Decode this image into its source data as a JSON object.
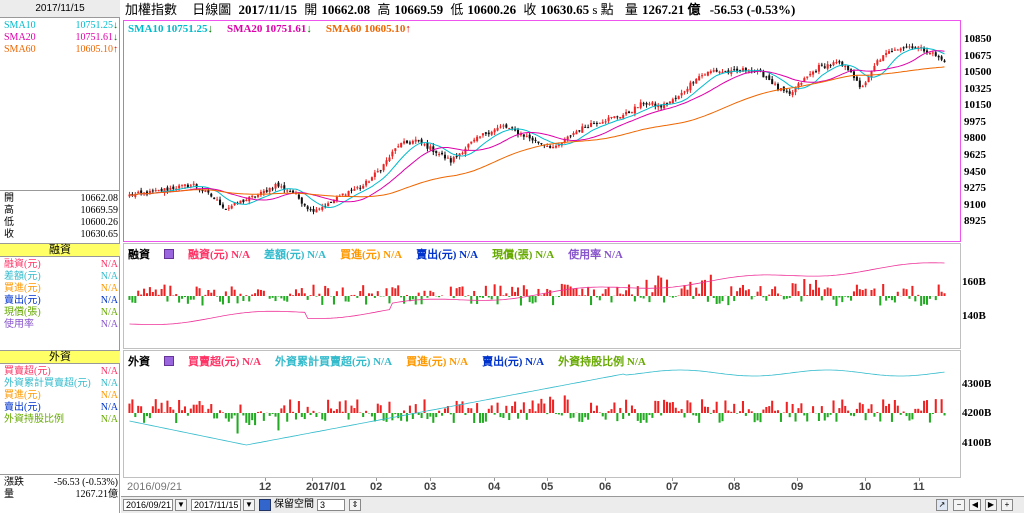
{
  "sidebar": {
    "date": "2017/11/15",
    "sma": [
      {
        "label": "SMA10",
        "value": "10751.25",
        "arrow": "down",
        "color": "#00bbcc"
      },
      {
        "label": "SMA20",
        "value": "10751.61",
        "arrow": "down",
        "color": "#dd00aa"
      },
      {
        "label": "SMA60",
        "value": "10605.10",
        "arrow": "up",
        "color": "#ee6600"
      }
    ],
    "ohlc": [
      {
        "label": "開",
        "value": "10662.08"
      },
      {
        "label": "高",
        "value": "10669.59"
      },
      {
        "label": "低",
        "value": "10600.26"
      },
      {
        "label": "收",
        "value": "10630.65"
      }
    ],
    "margin_title": "融資",
    "margin_items": [
      {
        "label": "融資(元)",
        "value": "N/A",
        "color": "#ff3366"
      },
      {
        "label": "差額(元)",
        "value": "N/A",
        "color": "#33bbcc"
      },
      {
        "label": "買進(元)",
        "value": "N/A",
        "color": "#ff9900"
      },
      {
        "label": "賣出(元)",
        "value": "N/A",
        "color": "#0033cc"
      },
      {
        "label": "現償(張)",
        "value": "N/A",
        "color": "#66aa00"
      },
      {
        "label": "使用率",
        "value": "N/A",
        "color": "#8855cc"
      }
    ],
    "foreign_title": "外資",
    "foreign_items": [
      {
        "label": "買賣超(元)",
        "value": "N/A",
        "color": "#ff3366"
      },
      {
        "label": "外資累計買賣超(元)",
        "value": "N/A",
        "color": "#33bbcc"
      },
      {
        "label": "買進(元)",
        "value": "N/A",
        "color": "#ff9900"
      },
      {
        "label": "賣出(元)",
        "value": "N/A",
        "color": "#0033cc"
      },
      {
        "label": "外資持股比例",
        "value": "N/A",
        "color": "#66aa00"
      }
    ],
    "change_label": "漲跌",
    "change_value": "-56.53 (-0.53%)",
    "volume_label": "量",
    "volume_value": "1267.21億"
  },
  "header": {
    "name": "加權指數",
    "type": "日線圖",
    "date": "2017/11/15",
    "open_label": "開",
    "open": "10662.08",
    "high_label": "高",
    "high": "10669.59",
    "low_label": "低",
    "low": "10600.26",
    "close_label": "收",
    "close": "10630.65",
    "unit": "s 點",
    "volume_label": "量",
    "volume": "1267.21 億",
    "change": "-56.53 (-0.53%)"
  },
  "price_legend": [
    {
      "label": "SMA10 10751.25",
      "arrow": "↓",
      "color": "#00bbcc"
    },
    {
      "label": "SMA20 10751.61",
      "arrow": "↓",
      "color": "#dd00aa"
    },
    {
      "label": "SMA60 10605.10",
      "arrow": "↑",
      "color": "#ee6600"
    }
  ],
  "margin_legend": {
    "title": "融資",
    "items": [
      {
        "label": "融資(元) N/A",
        "color": "#ff3366"
      },
      {
        "label": "差額(元) N/A",
        "color": "#33bbcc"
      },
      {
        "label": "買進(元) N/A",
        "color": "#ff9900"
      },
      {
        "label": "賣出(元) N/A",
        "color": "#0033cc"
      },
      {
        "label": "現償(張) N/A",
        "color": "#66aa00"
      },
      {
        "label": "使用率 N/A",
        "color": "#8855cc"
      }
    ]
  },
  "foreign_legend": {
    "title": "外資",
    "items": [
      {
        "label": "買賣超(元) N/A",
        "color": "#ff3366"
      },
      {
        "label": "外資累計買賣超(元) N/A",
        "color": "#33bbcc"
      },
      {
        "label": "買進(元) N/A",
        "color": "#ff9900"
      },
      {
        "label": "賣出(元) N/A",
        "color": "#0033cc"
      },
      {
        "label": "外資持股比例 N/A",
        "color": "#66aa00"
      }
    ]
  },
  "bottom": {
    "start_date": "2016/09/21",
    "end_date": "2017/11/15",
    "keep_label": "保留空間",
    "keep_value": "3"
  },
  "chart_data": [
    {
      "type": "candlestick",
      "title": "加權指數 日線圖",
      "y_ticks": [
        10850,
        10675,
        10500,
        10325,
        10150,
        9975,
        9800,
        9625,
        9450,
        9275,
        9100,
        8925
      ],
      "ylim": [
        8820,
        10960
      ],
      "x_ticks": [
        "2016/09/21",
        "12",
        "2017/01",
        "02",
        "03",
        "04",
        "05",
        "06",
        "07",
        "08",
        "09",
        "10",
        "11"
      ],
      "candle_count": 280,
      "close_anchors": [
        [
          0,
          9220
        ],
        [
          8,
          9250
        ],
        [
          15,
          9300
        ],
        [
          22,
          9330
        ],
        [
          28,
          9210
        ],
        [
          33,
          9080
        ],
        [
          38,
          9150
        ],
        [
          44,
          9220
        ],
        [
          50,
          9330
        ],
        [
          56,
          9250
        ],
        [
          62,
          9060
        ],
        [
          68,
          9120
        ],
        [
          74,
          9250
        ],
        [
          80,
          9320
        ],
        [
          86,
          9500
        ],
        [
          92,
          9750
        ],
        [
          98,
          9800
        ],
        [
          104,
          9700
        ],
        [
          110,
          9580
        ],
        [
          116,
          9750
        ],
        [
          122,
          9880
        ],
        [
          128,
          9950
        ],
        [
          134,
          9870
        ],
        [
          140,
          9780
        ],
        [
          146,
          9720
        ],
        [
          152,
          9880
        ],
        [
          158,
          9980
        ],
        [
          164,
          10030
        ],
        [
          170,
          10080
        ],
        [
          176,
          10200
        ],
        [
          182,
          10160
        ],
        [
          188,
          10260
        ],
        [
          194,
          10470
        ],
        [
          200,
          10540
        ],
        [
          206,
          10520
        ],
        [
          212,
          10560
        ],
        [
          218,
          10480
        ],
        [
          222,
          10350
        ],
        [
          226,
          10280
        ],
        [
          230,
          10420
        ],
        [
          236,
          10580
        ],
        [
          242,
          10620
        ],
        [
          247,
          10540
        ],
        [
          250,
          10350
        ],
        [
          253,
          10460
        ],
        [
          256,
          10640
        ],
        [
          262,
          10780
        ],
        [
          268,
          10800
        ],
        [
          274,
          10740
        ],
        [
          279,
          10631
        ]
      ],
      "sma10_last": 10751.25,
      "sma20_last": 10751.61,
      "sma60_last": 10605.1
    },
    {
      "type": "bar",
      "title": "融資",
      "y_ticks": [
        "160B",
        "140B"
      ],
      "series": [
        {
          "name": "融資(元)",
          "values": "N/A"
        },
        {
          "name": "使用率",
          "values": "N/A"
        }
      ]
    },
    {
      "type": "bar",
      "title": "外資",
      "y_ticks": [
        "4300B",
        "4200B",
        "4100B"
      ],
      "series": [
        {
          "name": "買賣超(元)",
          "values": "N/A"
        },
        {
          "name": "外資累計買賣超(元)",
          "values": "N/A"
        }
      ]
    }
  ]
}
